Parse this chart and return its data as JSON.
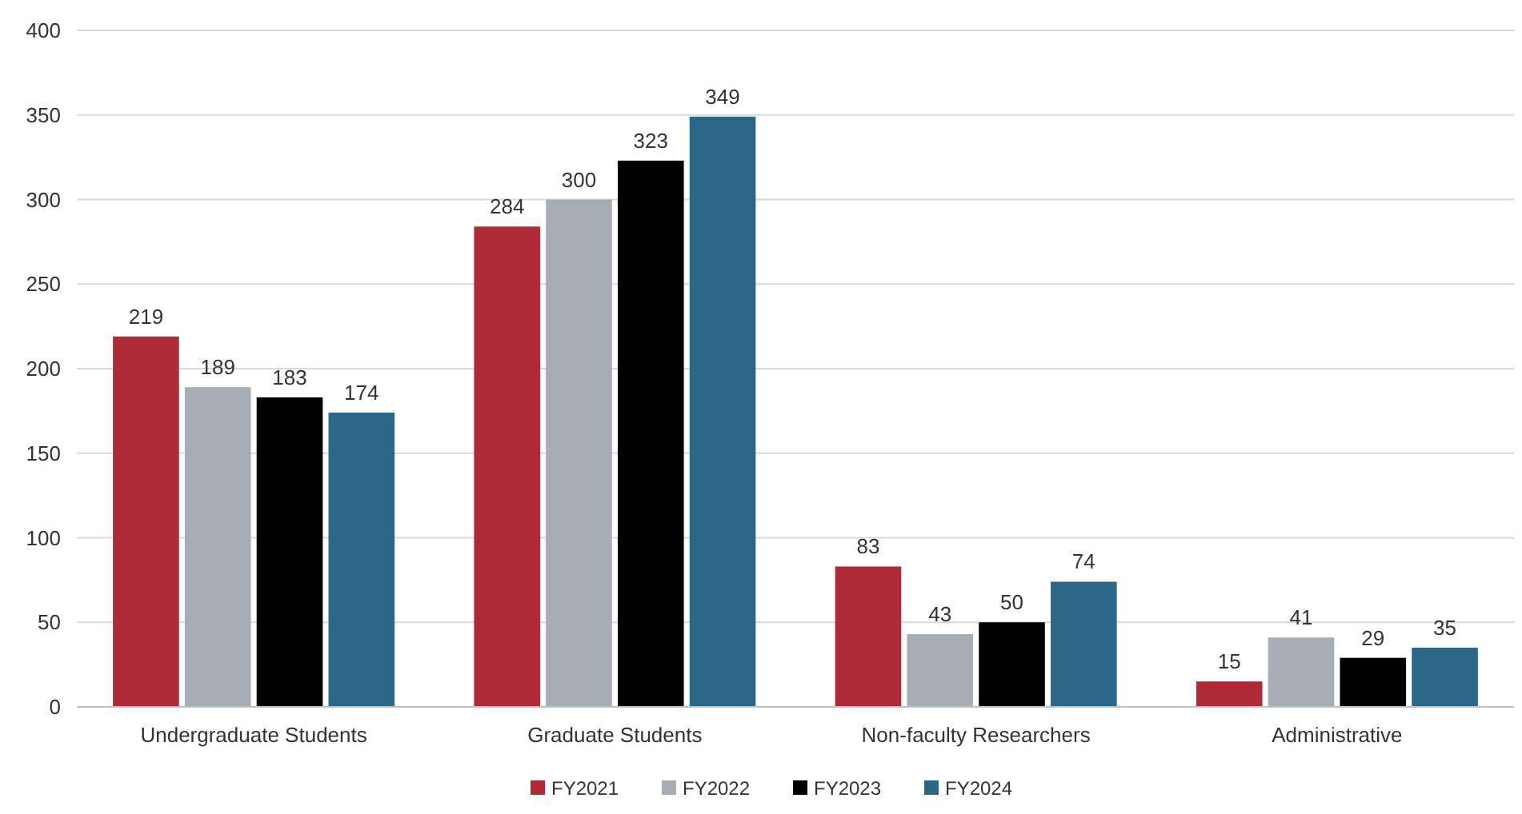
{
  "chart_data": {
    "type": "bar",
    "categories": [
      "Undergraduate Students",
      "Graduate Students",
      "Non-faculty Researchers",
      "Administrative"
    ],
    "series": [
      {
        "name": "FY2021",
        "color": "#ae2a37",
        "values": [
          219,
          284,
          83,
          15
        ]
      },
      {
        "name": "FY2022",
        "color": "#a7adb4",
        "values": [
          189,
          300,
          43,
          41
        ]
      },
      {
        "name": "FY2023",
        "color": "#000000",
        "values": [
          183,
          323,
          50,
          29
        ]
      },
      {
        "name": "FY2024",
        "color": "#2b6888",
        "values": [
          174,
          349,
          74,
          35
        ]
      }
    ],
    "ylim": [
      0,
      400
    ],
    "yticks": [
      0,
      50,
      100,
      150,
      200,
      250,
      300,
      350,
      400
    ],
    "grid": "y",
    "legend": "bottom",
    "data_labels": true
  }
}
